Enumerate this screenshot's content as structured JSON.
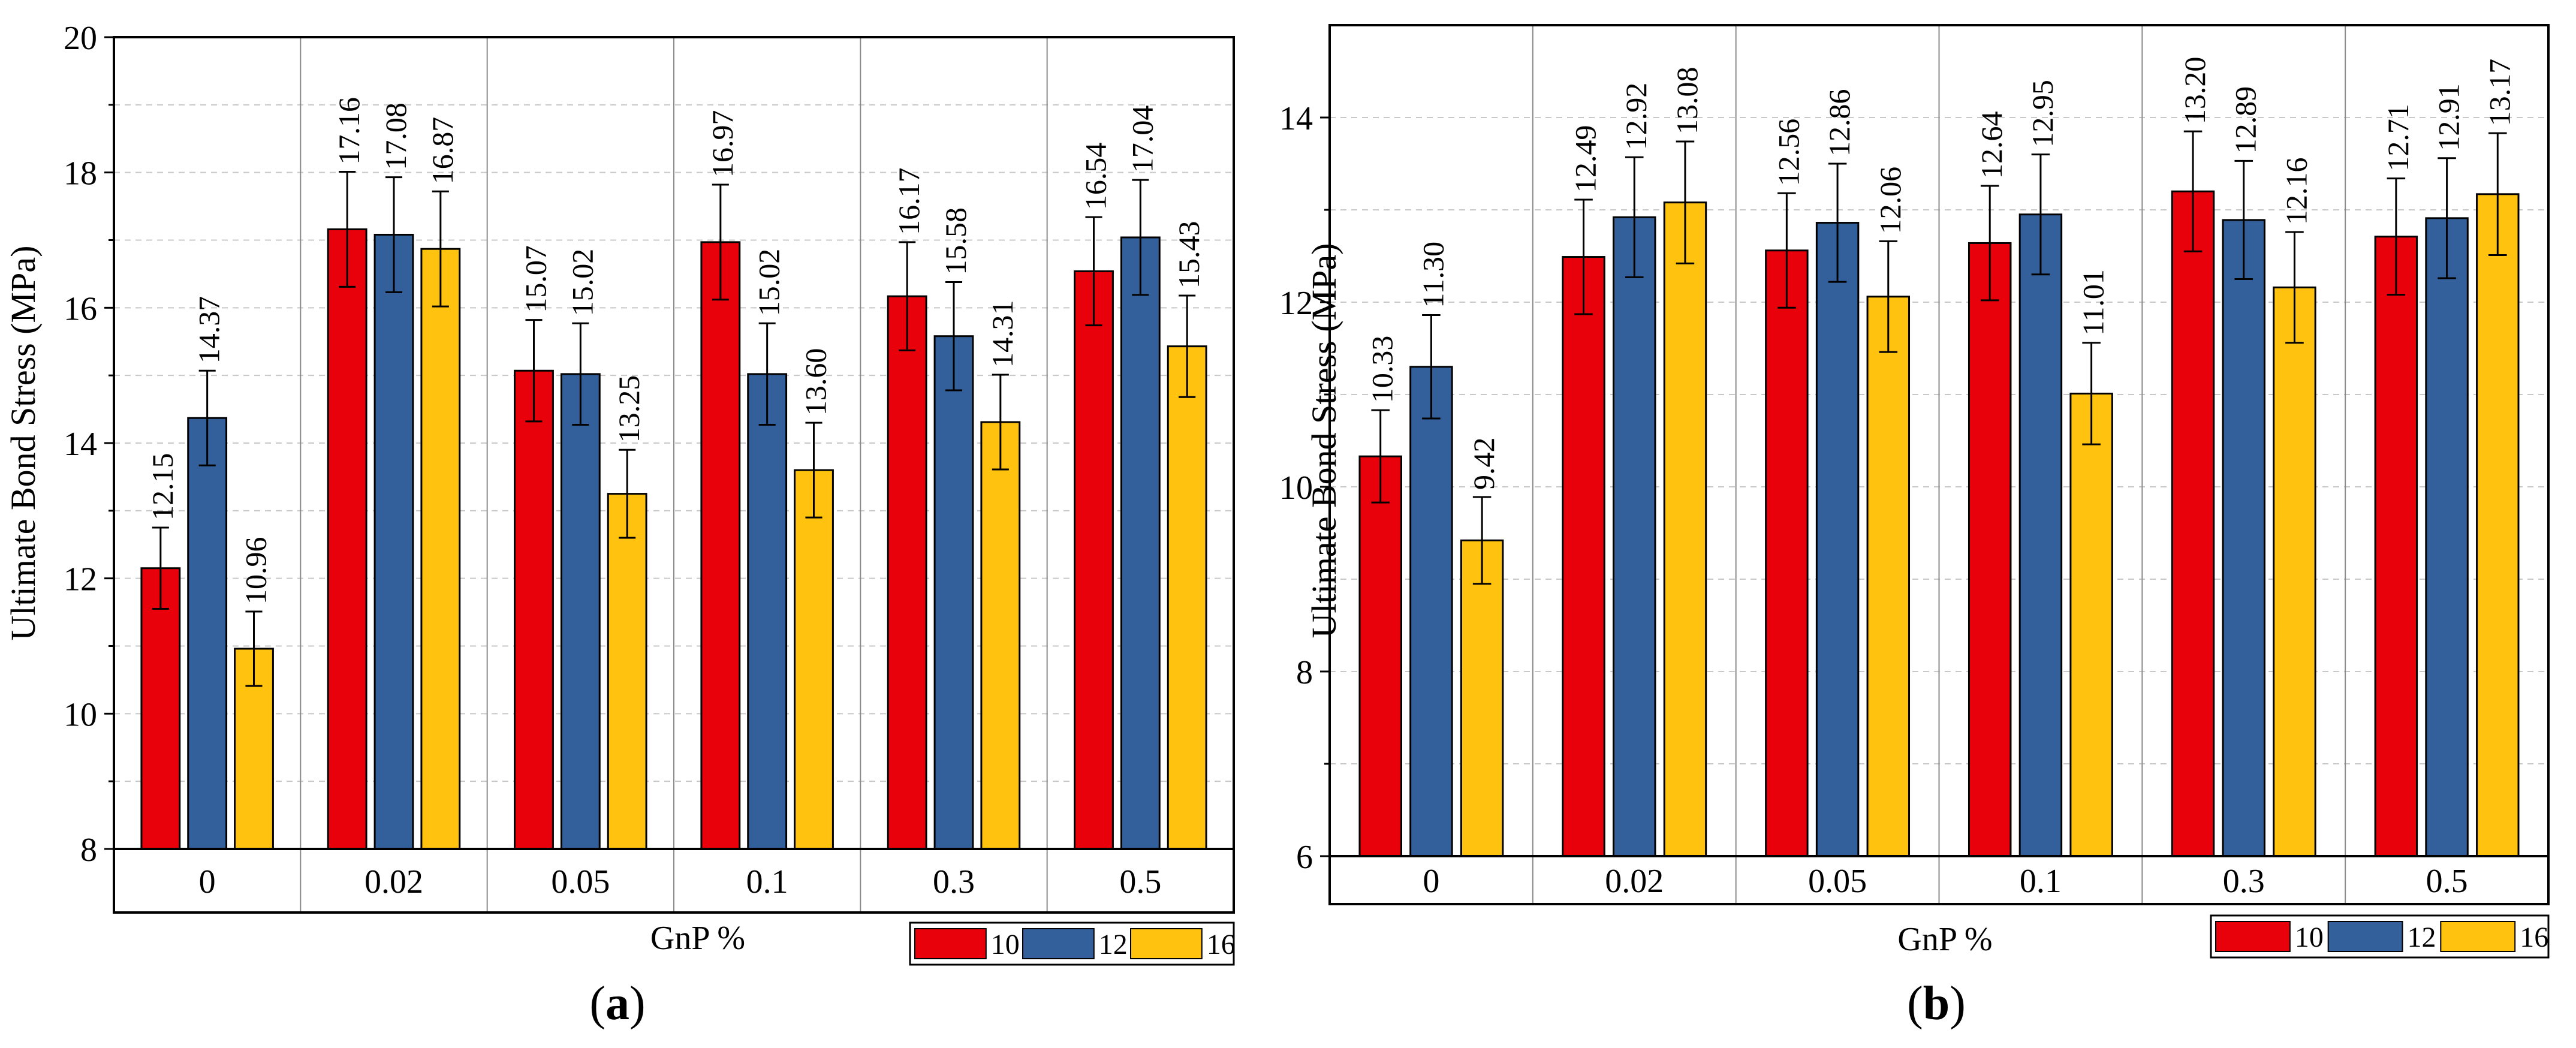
{
  "chart_data": [
    {
      "type": "bar",
      "panel_label": "(a)",
      "categories": [
        "0",
        "0.02",
        "0.05",
        "0.1",
        "0.3",
        "0.5"
      ],
      "xlabel": "GnP %",
      "ylabel": "Ultimate Bond Stress (MPa)",
      "ylim": [
        8,
        20
      ],
      "yticks": [
        "8",
        "10",
        "12",
        "14",
        "16",
        "18",
        "20"
      ],
      "grid": true,
      "legend_position": "bottom-right",
      "series": [
        {
          "name": "10",
          "color": "#e8000b",
          "values": [
            12.15,
            17.16,
            15.07,
            16.97,
            16.17,
            16.54
          ],
          "labels": [
            "12.15",
            "17.16",
            "15.07",
            "16.97",
            "16.17",
            "16.54"
          ],
          "errors": [
            0.6,
            0.85,
            0.75,
            0.85,
            0.8,
            0.8
          ]
        },
        {
          "name": "12",
          "color": "#33609a",
          "values": [
            14.37,
            17.08,
            15.02,
            15.02,
            15.58,
            17.04
          ],
          "labels": [
            "14.37",
            "17.08",
            "15.02",
            "15.02",
            "15.58",
            "17.04"
          ],
          "errors": [
            0.7,
            0.85,
            0.75,
            0.75,
            0.8,
            0.85
          ]
        },
        {
          "name": "16",
          "color": "#ffc20e",
          "values": [
            10.96,
            16.87,
            13.25,
            13.6,
            14.31,
            15.43
          ],
          "labels": [
            "10.96",
            "16.87",
            "13.25",
            "13.60",
            "14.31",
            "15.43"
          ],
          "errors": [
            0.55,
            0.85,
            0.65,
            0.7,
            0.7,
            0.75
          ]
        }
      ]
    },
    {
      "type": "bar",
      "panel_label": "(b)",
      "categories": [
        "0",
        "0.02",
        "0.05",
        "0.1",
        "0.3",
        "0.5"
      ],
      "xlabel": "GnP %",
      "ylabel": "Ultimate Bond Stress (MPa)",
      "ylim": [
        6,
        15
      ],
      "yticks": [
        "6",
        "8",
        "10",
        "12",
        "14"
      ],
      "grid": true,
      "legend_position": "bottom-right",
      "series": [
        {
          "name": "10",
          "color": "#e8000b",
          "values": [
            10.33,
            12.49,
            12.56,
            12.64,
            13.2,
            12.71
          ],
          "labels": [
            "10.33",
            "12.49",
            "12.56",
            "12.64",
            "13.20",
            "12.71"
          ],
          "errors": [
            0.5,
            0.62,
            0.62,
            0.62,
            0.65,
            0.63
          ]
        },
        {
          "name": "12",
          "color": "#33609a",
          "values": [
            11.3,
            12.92,
            12.86,
            12.95,
            12.89,
            12.91
          ],
          "labels": [
            "11.30",
            "12.92",
            "12.86",
            "12.95",
            "12.89",
            "12.91"
          ],
          "errors": [
            0.56,
            0.65,
            0.64,
            0.65,
            0.64,
            0.65
          ]
        },
        {
          "name": "16",
          "color": "#ffc20e",
          "values": [
            9.42,
            13.08,
            12.06,
            11.01,
            12.16,
            13.17
          ],
          "labels": [
            "9.42",
            "13.08",
            "12.06",
            "11.01",
            "12.16",
            "13.17"
          ],
          "errors": [
            0.47,
            0.66,
            0.6,
            0.55,
            0.6,
            0.66
          ]
        }
      ]
    }
  ]
}
